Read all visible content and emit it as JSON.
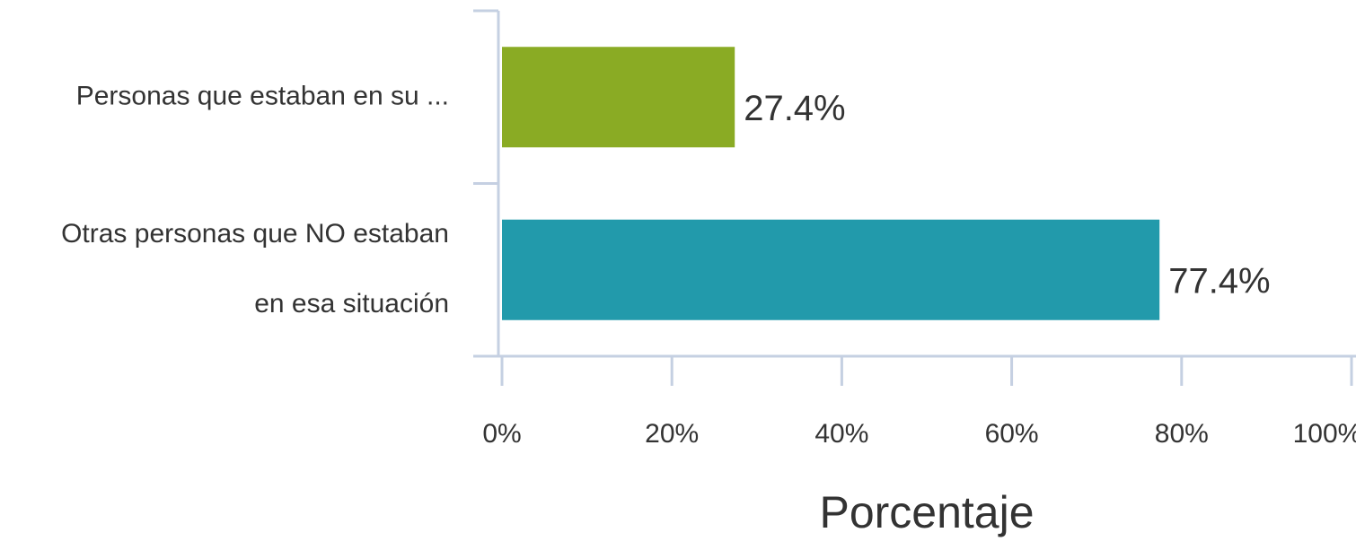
{
  "chart_data": {
    "type": "bar",
    "orientation": "horizontal",
    "categories": [
      "Personas que estaban en su ...",
      "Otras personas que NO estaban\nen esa situación"
    ],
    "values": [
      27.4,
      77.4
    ],
    "value_labels": [
      "27.4%",
      "77.4%"
    ],
    "colors": [
      "#8aab24",
      "#229aab"
    ],
    "xlim": [
      0,
      100
    ],
    "xticks": [
      {
        "value": 0,
        "label": "0%"
      },
      {
        "value": 20,
        "label": "20%"
      },
      {
        "value": 40,
        "label": "40%"
      },
      {
        "value": 60,
        "label": "60%"
      },
      {
        "value": 80,
        "label": "80%"
      },
      {
        "value": 100,
        "label": "100%"
      }
    ],
    "xlabel": "Porcentaje"
  }
}
